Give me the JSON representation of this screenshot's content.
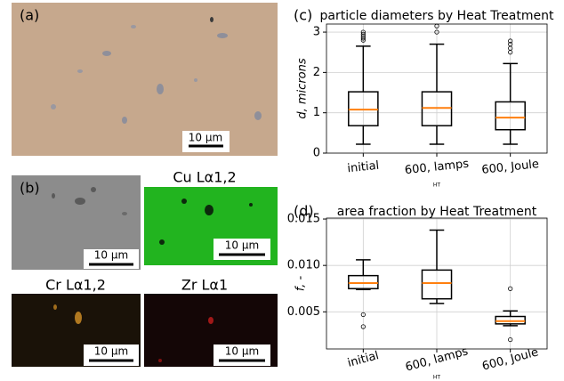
{
  "panels": {
    "a": {
      "label": "(a)",
      "scale_bar": "10 μm"
    },
    "b": {
      "label": "(b)",
      "scale_bar": "10 μm"
    },
    "cu": {
      "title": "Cu Lα1,2",
      "scale_bar": "10 μm"
    },
    "cr": {
      "title": "Cr Lα1,2",
      "scale_bar": "10 μm"
    },
    "zr": {
      "title": "Zr Lα1",
      "scale_bar": "10 μm"
    }
  },
  "chart_data": [
    {
      "type": "box",
      "panel_label": "(c)",
      "title": "particle diameters by Heat Treatment",
      "y_label": "d, microns",
      "x_label": "HT",
      "categories": [
        "initial",
        "600, lamps",
        "600, Joule"
      ],
      "boxes": [
        {
          "whislo": 0.22,
          "q1": 0.68,
          "med": 1.08,
          "q3": 1.52,
          "whishi": 2.65,
          "fliers": [
            2.8,
            2.85,
            2.9,
            2.95,
            3.0
          ]
        },
        {
          "whislo": 0.22,
          "q1": 0.68,
          "med": 1.12,
          "q3": 1.52,
          "whishi": 2.7,
          "fliers": [
            3.0,
            3.15
          ]
        },
        {
          "whislo": 0.22,
          "q1": 0.58,
          "med": 0.88,
          "q3": 1.27,
          "whishi": 2.22,
          "fliers": [
            2.5,
            2.6,
            2.7,
            2.78
          ]
        }
      ],
      "color": "#000000",
      "median_color": "#ff7f0e",
      "ylim": [
        0,
        3.2
      ],
      "yticks": [
        0,
        1,
        2,
        3
      ],
      "grid": true
    },
    {
      "type": "box",
      "panel_label": "(d)",
      "title": "area fraction by Heat Treatment",
      "y_label": "f, -",
      "x_label": "HT",
      "categories": [
        "initial",
        "600, lamps",
        "600, Joule"
      ],
      "boxes": [
        {
          "whislo": 0.0074,
          "q1": 0.0075,
          "med": 0.0081,
          "q3": 0.0089,
          "whishi": 0.0106,
          "fliers": [
            0.0047,
            0.0034
          ]
        },
        {
          "whislo": 0.0059,
          "q1": 0.0064,
          "med": 0.0081,
          "q3": 0.0095,
          "whishi": 0.0138,
          "fliers": []
        },
        {
          "whislo": 0.0035,
          "q1": 0.0037,
          "med": 0.004,
          "q3": 0.0045,
          "whishi": 0.0051,
          "fliers": [
            0.0075,
            0.002
          ]
        }
      ],
      "color": "#000000",
      "median_color": "#ff7f0e",
      "ylim": [
        0.001,
        0.0151
      ],
      "yticks": [
        0.005,
        {
          "value": 0.01,
          "label": "0.010"
        },
        0.015
      ],
      "grid": true
    }
  ]
}
